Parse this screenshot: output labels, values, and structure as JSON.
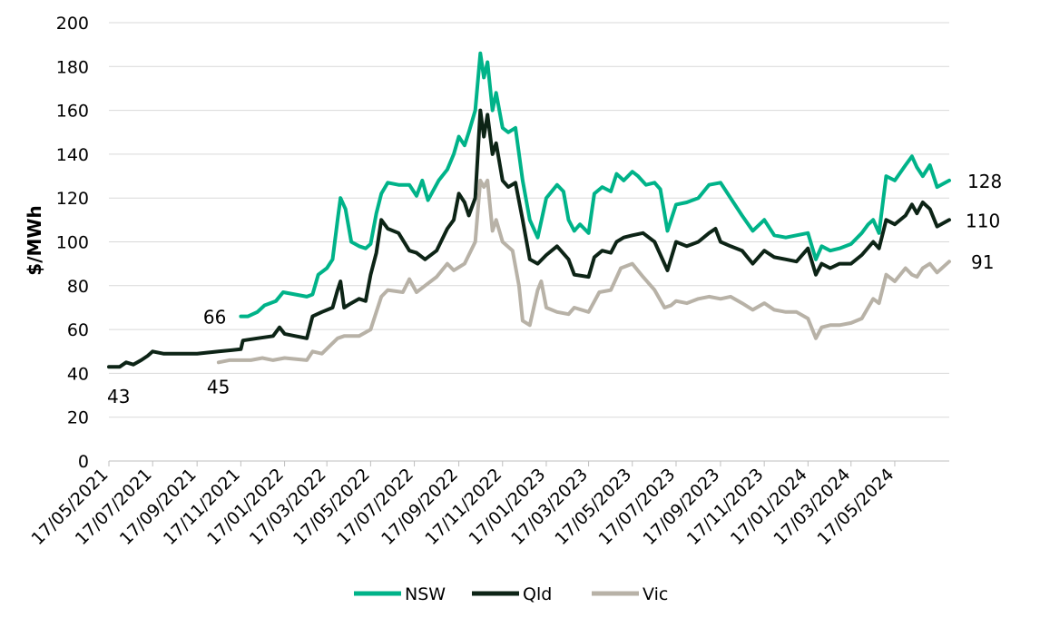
{
  "chart_data": {
    "type": "line",
    "title": "",
    "xlabel": "",
    "ylabel": "$/MWh",
    "ylim": [
      0,
      200
    ],
    "yticks": [
      "0",
      "20",
      "40",
      "60",
      "80",
      "100",
      "120",
      "140",
      "160",
      "180",
      "200"
    ],
    "date_range": [
      "17/05/2021",
      "01/08/2024"
    ],
    "xticks": [
      "17/05/2021",
      "17/07/2021",
      "17/09/2021",
      "17/11/2021",
      "17/01/2022",
      "17/03/2022",
      "17/05/2022",
      "17/07/2022",
      "17/09/2022",
      "17/11/2022",
      "17/01/2023",
      "17/03/2023",
      "17/05/2023",
      "17/07/2023",
      "17/09/2023",
      "17/11/2023",
      "17/01/2024",
      "17/03/2024",
      "17/05/2024"
    ],
    "grid": true,
    "legend_position": "bottom",
    "series": [
      {
        "name": "NSW",
        "color": "#00b389",
        "points": [
          [
            "17/11/2021",
            66
          ],
          [
            "27/11/2021",
            66
          ],
          [
            "10/12/2021",
            68
          ],
          [
            "20/12/2021",
            71
          ],
          [
            "05/01/2022",
            73
          ],
          [
            "15/01/2022",
            77
          ],
          [
            "01/02/2022",
            76
          ],
          [
            "17/02/2022",
            75
          ],
          [
            "25/02/2022",
            76
          ],
          [
            "05/03/2022",
            85
          ],
          [
            "17/03/2022",
            88
          ],
          [
            "25/03/2022",
            92
          ],
          [
            "01/04/2022",
            110
          ],
          [
            "05/04/2022",
            120
          ],
          [
            "12/04/2022",
            115
          ],
          [
            "20/04/2022",
            100
          ],
          [
            "01/05/2022",
            98
          ],
          [
            "10/05/2022",
            97
          ],
          [
            "17/05/2022",
            99
          ],
          [
            "25/05/2022",
            113
          ],
          [
            "01/06/2022",
            122
          ],
          [
            "10/06/2022",
            127
          ],
          [
            "25/06/2022",
            126
          ],
          [
            "10/07/2022",
            126
          ],
          [
            "20/07/2022",
            121
          ],
          [
            "28/07/2022",
            128
          ],
          [
            "05/08/2022",
            119
          ],
          [
            "20/08/2022",
            128
          ],
          [
            "01/09/2022",
            133
          ],
          [
            "10/09/2022",
            140
          ],
          [
            "17/09/2022",
            148
          ],
          [
            "25/09/2022",
            144
          ],
          [
            "01/10/2022",
            150
          ],
          [
            "10/10/2022",
            160
          ],
          [
            "17/10/2022",
            186
          ],
          [
            "22/10/2022",
            175
          ],
          [
            "27/10/2022",
            182
          ],
          [
            "03/11/2022",
            160
          ],
          [
            "08/11/2022",
            168
          ],
          [
            "17/11/2022",
            152
          ],
          [
            "25/11/2022",
            150
          ],
          [
            "05/12/2022",
            152
          ],
          [
            "15/12/2022",
            128
          ],
          [
            "25/12/2022",
            110
          ],
          [
            "05/01/2023",
            102
          ],
          [
            "17/01/2023",
            120
          ],
          [
            "01/02/2023",
            126
          ],
          [
            "10/02/2023",
            123
          ],
          [
            "17/02/2023",
            110
          ],
          [
            "25/02/2023",
            105
          ],
          [
            "05/03/2023",
            108
          ],
          [
            "17/03/2023",
            104
          ],
          [
            "25/03/2023",
            122
          ],
          [
            "05/04/2023",
            125
          ],
          [
            "17/04/2023",
            123
          ],
          [
            "25/04/2023",
            131
          ],
          [
            "05/05/2023",
            128
          ],
          [
            "17/05/2023",
            132
          ],
          [
            "25/05/2023",
            130
          ],
          [
            "05/06/2023",
            126
          ],
          [
            "17/06/2023",
            127
          ],
          [
            "25/06/2023",
            124
          ],
          [
            "05/07/2023",
            105
          ],
          [
            "17/07/2023",
            117
          ],
          [
            "01/08/2023",
            118
          ],
          [
            "17/08/2023",
            120
          ],
          [
            "01/09/2023",
            126
          ],
          [
            "17/09/2023",
            127
          ],
          [
            "01/10/2023",
            120
          ],
          [
            "17/10/2023",
            112
          ],
          [
            "01/11/2023",
            105
          ],
          [
            "17/11/2023",
            110
          ],
          [
            "01/12/2023",
            103
          ],
          [
            "17/12/2023",
            102
          ],
          [
            "01/01/2024",
            103
          ],
          [
            "17/01/2024",
            104
          ],
          [
            "28/01/2024",
            92
          ],
          [
            "05/02/2024",
            98
          ],
          [
            "17/02/2024",
            96
          ],
          [
            "01/03/2024",
            97
          ],
          [
            "17/03/2024",
            99
          ],
          [
            "01/04/2024",
            104
          ],
          [
            "10/04/2024",
            108
          ],
          [
            "17/04/2024",
            110
          ],
          [
            "25/04/2024",
            104
          ],
          [
            "05/05/2024",
            130
          ],
          [
            "17/05/2024",
            128
          ],
          [
            "01/06/2024",
            135
          ],
          [
            "10/06/2024",
            139
          ],
          [
            "17/06/2024",
            134
          ],
          [
            "25/06/2024",
            130
          ],
          [
            "05/07/2024",
            135
          ],
          [
            "15/07/2024",
            125
          ],
          [
            "01/08/2024",
            128
          ]
        ]
      },
      {
        "name": "Qld",
        "color": "#0d2416",
        "points": [
          [
            "17/05/2021",
            43
          ],
          [
            "01/06/2021",
            43
          ],
          [
            "10/06/2021",
            45
          ],
          [
            "20/06/2021",
            44
          ],
          [
            "01/07/2021",
            46
          ],
          [
            "10/07/2021",
            48
          ],
          [
            "17/07/2021",
            50
          ],
          [
            "01/08/2021",
            49
          ],
          [
            "17/09/2021",
            49
          ],
          [
            "17/10/2021",
            50
          ],
          [
            "17/11/2021",
            51
          ],
          [
            "20/11/2021",
            55
          ],
          [
            "10/12/2021",
            56
          ],
          [
            "01/01/2022",
            57
          ],
          [
            "10/01/2022",
            61
          ],
          [
            "17/01/2022",
            58
          ],
          [
            "01/02/2022",
            57
          ],
          [
            "17/02/2022",
            56
          ],
          [
            "25/02/2022",
            66
          ],
          [
            "10/03/2022",
            68
          ],
          [
            "25/03/2022",
            70
          ],
          [
            "01/04/2022",
            78
          ],
          [
            "05/04/2022",
            82
          ],
          [
            "10/04/2022",
            70
          ],
          [
            "20/04/2022",
            72
          ],
          [
            "01/05/2022",
            74
          ],
          [
            "10/05/2022",
            73
          ],
          [
            "17/05/2022",
            85
          ],
          [
            "25/05/2022",
            95
          ],
          [
            "01/06/2022",
            110
          ],
          [
            "10/06/2022",
            106
          ],
          [
            "25/06/2022",
            104
          ],
          [
            "10/07/2022",
            96
          ],
          [
            "20/07/2022",
            95
          ],
          [
            "01/08/2022",
            92
          ],
          [
            "17/08/2022",
            96
          ],
          [
            "01/09/2022",
            106
          ],
          [
            "10/09/2022",
            110
          ],
          [
            "17/09/2022",
            122
          ],
          [
            "25/09/2022",
            118
          ],
          [
            "01/10/2022",
            112
          ],
          [
            "10/10/2022",
            120
          ],
          [
            "17/10/2022",
            160
          ],
          [
            "22/10/2022",
            148
          ],
          [
            "27/10/2022",
            158
          ],
          [
            "03/11/2022",
            140
          ],
          [
            "08/11/2022",
            145
          ],
          [
            "17/11/2022",
            128
          ],
          [
            "25/11/2022",
            125
          ],
          [
            "05/12/2022",
            127
          ],
          [
            "15/12/2022",
            110
          ],
          [
            "25/12/2022",
            92
          ],
          [
            "05/01/2023",
            90
          ],
          [
            "17/01/2023",
            94
          ],
          [
            "01/02/2023",
            98
          ],
          [
            "17/02/2023",
            92
          ],
          [
            "25/02/2023",
            85
          ],
          [
            "17/03/2023",
            84
          ],
          [
            "25/03/2023",
            93
          ],
          [
            "05/04/2023",
            96
          ],
          [
            "17/04/2023",
            95
          ],
          [
            "25/04/2023",
            100
          ],
          [
            "05/05/2023",
            102
          ],
          [
            "17/05/2023",
            103
          ],
          [
            "01/06/2023",
            104
          ],
          [
            "17/06/2023",
            100
          ],
          [
            "05/07/2023",
            87
          ],
          [
            "17/07/2023",
            100
          ],
          [
            "01/08/2023",
            98
          ],
          [
            "17/08/2023",
            100
          ],
          [
            "01/09/2023",
            104
          ],
          [
            "10/09/2023",
            106
          ],
          [
            "17/09/2023",
            100
          ],
          [
            "01/10/2023",
            98
          ],
          [
            "17/10/2023",
            96
          ],
          [
            "01/11/2023",
            90
          ],
          [
            "17/11/2023",
            96
          ],
          [
            "01/12/2023",
            93
          ],
          [
            "17/12/2023",
            92
          ],
          [
            "01/01/2024",
            91
          ],
          [
            "17/01/2024",
            97
          ],
          [
            "28/01/2024",
            85
          ],
          [
            "05/02/2024",
            90
          ],
          [
            "17/02/2024",
            88
          ],
          [
            "01/03/2024",
            90
          ],
          [
            "17/03/2024",
            90
          ],
          [
            "01/04/2024",
            94
          ],
          [
            "17/04/2024",
            100
          ],
          [
            "25/04/2024",
            97
          ],
          [
            "05/05/2024",
            110
          ],
          [
            "17/05/2024",
            108
          ],
          [
            "01/06/2024",
            112
          ],
          [
            "10/06/2024",
            117
          ],
          [
            "17/06/2024",
            113
          ],
          [
            "25/06/2024",
            118
          ],
          [
            "05/07/2024",
            115
          ],
          [
            "15/07/2024",
            107
          ],
          [
            "01/08/2024",
            110
          ]
        ]
      },
      {
        "name": "Vic",
        "color": "#b8b2a7",
        "points": [
          [
            "17/10/2021",
            45
          ],
          [
            "01/11/2021",
            46
          ],
          [
            "01/12/2021",
            46
          ],
          [
            "17/12/2021",
            47
          ],
          [
            "01/01/2022",
            46
          ],
          [
            "17/01/2022",
            47
          ],
          [
            "17/02/2022",
            46
          ],
          [
            "25/02/2022",
            50
          ],
          [
            "10/03/2022",
            49
          ],
          [
            "01/04/2022",
            56
          ],
          [
            "10/04/2022",
            57
          ],
          [
            "01/05/2022",
            57
          ],
          [
            "17/05/2022",
            60
          ],
          [
            "25/05/2022",
            68
          ],
          [
            "01/06/2022",
            75
          ],
          [
            "10/06/2022",
            78
          ],
          [
            "01/07/2022",
            77
          ],
          [
            "10/07/2022",
            83
          ],
          [
            "20/07/2022",
            77
          ],
          [
            "01/08/2022",
            80
          ],
          [
            "17/08/2022",
            84
          ],
          [
            "01/09/2022",
            90
          ],
          [
            "10/09/2022",
            87
          ],
          [
            "25/09/2022",
            90
          ],
          [
            "10/10/2022",
            100
          ],
          [
            "17/10/2022",
            128
          ],
          [
            "22/10/2022",
            125
          ],
          [
            "27/10/2022",
            128
          ],
          [
            "03/11/2022",
            105
          ],
          [
            "08/11/2022",
            110
          ],
          [
            "17/11/2022",
            100
          ],
          [
            "01/12/2022",
            96
          ],
          [
            "10/12/2022",
            80
          ],
          [
            "15/12/2022",
            64
          ],
          [
            "25/12/2022",
            62
          ],
          [
            "05/01/2023",
            78
          ],
          [
            "10/01/2023",
            82
          ],
          [
            "17/01/2023",
            70
          ],
          [
            "01/02/2023",
            68
          ],
          [
            "17/02/2023",
            67
          ],
          [
            "25/02/2023",
            70
          ],
          [
            "17/03/2023",
            68
          ],
          [
            "01/04/2023",
            77
          ],
          [
            "17/04/2023",
            78
          ],
          [
            "01/05/2023",
            88
          ],
          [
            "17/05/2023",
            90
          ],
          [
            "01/06/2023",
            84
          ],
          [
            "17/06/2023",
            78
          ],
          [
            "01/07/2023",
            70
          ],
          [
            "10/07/2023",
            71
          ],
          [
            "17/07/2023",
            73
          ],
          [
            "01/08/2023",
            72
          ],
          [
            "17/08/2023",
            74
          ],
          [
            "01/09/2023",
            75
          ],
          [
            "17/09/2023",
            74
          ],
          [
            "01/10/2023",
            75
          ],
          [
            "17/10/2023",
            72
          ],
          [
            "01/11/2023",
            69
          ],
          [
            "17/11/2023",
            72
          ],
          [
            "01/12/2023",
            69
          ],
          [
            "17/12/2023",
            68
          ],
          [
            "01/01/2024",
            68
          ],
          [
            "17/01/2024",
            65
          ],
          [
            "28/01/2024",
            56
          ],
          [
            "05/02/2024",
            61
          ],
          [
            "17/02/2024",
            62
          ],
          [
            "01/03/2024",
            62
          ],
          [
            "17/03/2024",
            63
          ],
          [
            "01/04/2024",
            65
          ],
          [
            "17/04/2024",
            74
          ],
          [
            "25/04/2024",
            72
          ],
          [
            "05/05/2024",
            85
          ],
          [
            "17/05/2024",
            82
          ],
          [
            "01/06/2024",
            88
          ],
          [
            "10/06/2024",
            85
          ],
          [
            "17/06/2024",
            84
          ],
          [
            "25/06/2024",
            88
          ],
          [
            "05/07/2024",
            90
          ],
          [
            "15/07/2024",
            86
          ],
          [
            "01/08/2024",
            91
          ]
        ]
      }
    ],
    "annotations": [
      {
        "text": "128",
        "date": "01/08/2024",
        "value": 128
      },
      {
        "text": "110",
        "date": "01/08/2024",
        "value": 110
      },
      {
        "text": "91",
        "date": "01/08/2024",
        "value": 91
      },
      {
        "text": "66",
        "date": "17/11/2021",
        "value": 66
      },
      {
        "text": "43",
        "date": "17/05/2021",
        "value": 43
      },
      {
        "text": "45",
        "date": "17/10/2021",
        "value": 45
      }
    ]
  }
}
